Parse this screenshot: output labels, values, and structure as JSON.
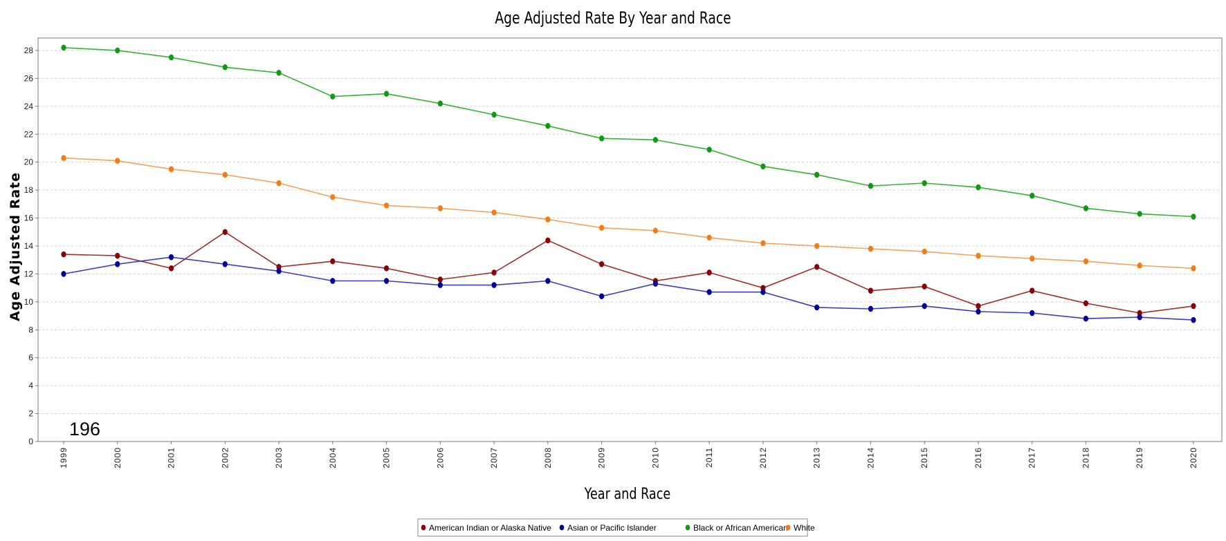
{
  "chart_data": {
    "type": "line",
    "title": "Age Adjusted Rate By Year and Race",
    "xlabel": "Year and Race",
    "ylabel": "Age Adjusted Rate",
    "ylim": [
      0,
      29
    ],
    "yticks": [
      0,
      2,
      4,
      6,
      8,
      10,
      12,
      14,
      16,
      18,
      20,
      22,
      24,
      26,
      28
    ],
    "grid": true,
    "legend_position": "bottom-center",
    "categories": [
      "1999",
      "2000",
      "2001",
      "2002",
      "2003",
      "2004",
      "2005",
      "2006",
      "2007",
      "2008",
      "2009",
      "2010",
      "2011",
      "2012",
      "2013",
      "2014",
      "2015",
      "2016",
      "2017",
      "2018",
      "2019",
      "2020"
    ],
    "series": [
      {
        "name": "American Indian or Alaska Native",
        "color": "#a52a2a",
        "marker_color": "#8b0000",
        "values": [
          13.4,
          13.3,
          12.4,
          15.0,
          12.5,
          12.9,
          12.4,
          11.6,
          12.1,
          14.4,
          12.7,
          11.5,
          12.1,
          11.0,
          12.5,
          10.8,
          11.1,
          9.7,
          10.8,
          9.9,
          9.2,
          9.7
        ]
      },
      {
        "name": "Asian or Pacific Islander",
        "color": "#3b3bc4",
        "marker_color": "#000099",
        "values": [
          12.0,
          12.7,
          13.2,
          12.7,
          12.2,
          11.5,
          11.5,
          11.2,
          11.2,
          11.5,
          10.4,
          11.3,
          10.7,
          10.7,
          9.6,
          9.5,
          9.7,
          9.3,
          9.2,
          8.8,
          8.9,
          8.7
        ]
      },
      {
        "name": "Black or African American",
        "color": "#33b233",
        "marker_color": "#119911",
        "values": [
          28.2,
          28.0,
          27.5,
          26.8,
          26.4,
          24.7,
          24.9,
          24.2,
          23.4,
          22.6,
          21.7,
          21.6,
          20.9,
          19.7,
          19.1,
          18.3,
          18.5,
          18.2,
          17.6,
          16.7,
          16.3,
          16.1
        ]
      },
      {
        "name": "White",
        "color": "#f5a35a",
        "marker_color": "#f07c1a",
        "values": [
          20.3,
          20.1,
          19.5,
          19.1,
          18.5,
          17.5,
          16.9,
          16.7,
          16.4,
          15.9,
          15.3,
          15.1,
          14.6,
          14.2,
          14.0,
          13.8,
          13.6,
          13.3,
          13.1,
          12.9,
          12.6,
          12.4
        ]
      }
    ],
    "annotation": "196"
  }
}
